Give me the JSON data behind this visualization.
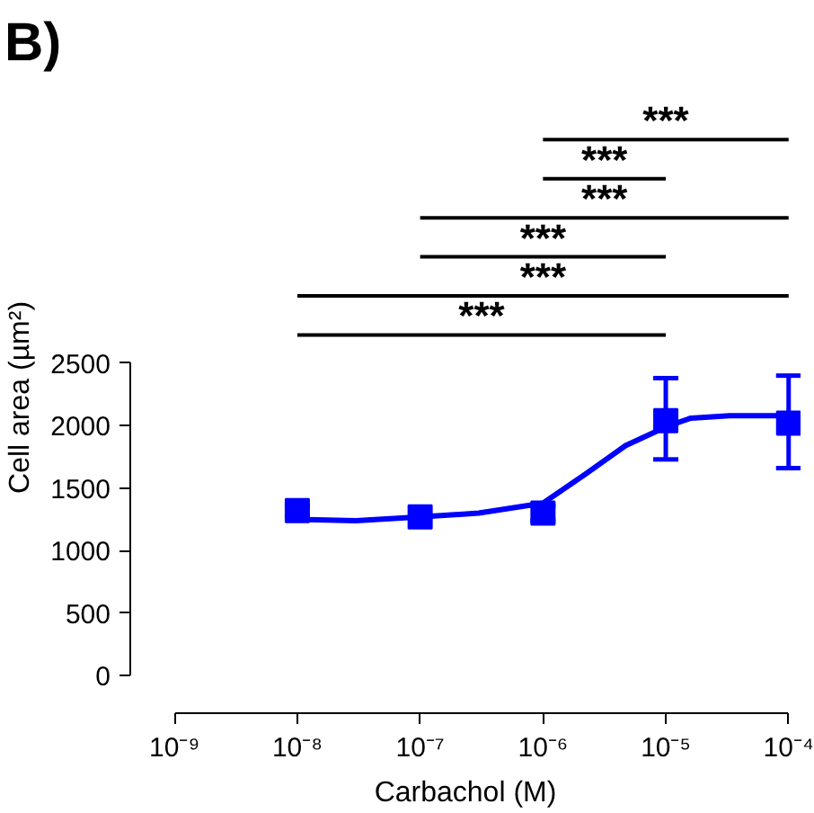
{
  "chart_data": {
    "type": "scatter",
    "title": "B)",
    "xlabel": "Carbachol (M)",
    "ylabel": "Cell area (µm²)",
    "log": "x",
    "xlim": [
      1e-09,
      0.0001
    ],
    "xticks": [
      {
        "value": 1e-09,
        "label": "10⁻⁹"
      },
      {
        "value": 1e-08,
        "label": "10⁻⁸"
      },
      {
        "value": 1e-07,
        "label": "10⁻⁷"
      },
      {
        "value": 1e-06,
        "label": "10⁻⁶"
      },
      {
        "value": 1e-05,
        "label": "10⁻⁵"
      },
      {
        "value": 0.0001,
        "label": "10⁻⁴"
      }
    ],
    "ylim": [
      0,
      2500
    ],
    "yticks": [
      0,
      500,
      1000,
      1500,
      2000,
      2500
    ],
    "grid": false,
    "series": [
      {
        "color": "#0000ff",
        "marker": "square",
        "x": [
          1e-08,
          1e-07,
          1e-06,
          1e-05,
          0.0001
        ],
        "values": [
          1320,
          1270,
          1300,
          2040,
          2020
        ],
        "errors": [
          40,
          null,
          60,
          [
            1730,
            2380
          ],
          [
            1660,
            2400
          ]
        ]
      },
      {
        "type": "line",
        "color": "#0000ff",
        "marker": "none",
        "line_style": "solid",
        "x": [
          1e-08,
          3e-08,
          1e-07,
          3e-07,
          1e-06,
          2.2e-06,
          4.7e-06,
          1e-05,
          1.6e-05,
          3.3e-05,
          0.0001
        ],
        "values": [
          1250,
          1240,
          1270,
          1300,
          1380,
          1610,
          1840,
          1990,
          2060,
          2080,
          2080
        ]
      }
    ],
    "annotations": [
      "***",
      "***",
      "***",
      "***",
      "***",
      "***"
    ]
  }
}
